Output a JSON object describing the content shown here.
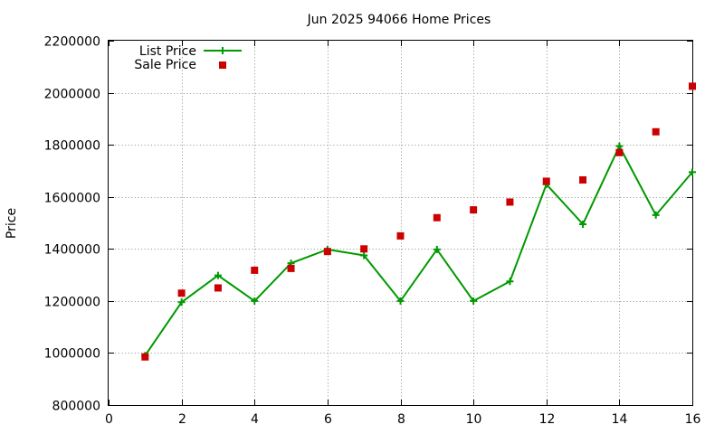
{
  "chart_data": {
    "type": "line",
    "title": "Jun 2025 94066 Home Prices",
    "xlabel": "",
    "ylabel": "Price",
    "xlim": [
      0,
      16
    ],
    "ylim": [
      800000,
      2200000
    ],
    "xticks": [
      0,
      2,
      4,
      6,
      8,
      10,
      12,
      14,
      16
    ],
    "yticks": [
      800000,
      1000000,
      1200000,
      1400000,
      1600000,
      1800000,
      2000000,
      2200000
    ],
    "grid": true,
    "legend_position": "top-left",
    "series": [
      {
        "name": "List Price",
        "style": "line+cross",
        "color": "#009900",
        "x": [
          1,
          2,
          3,
          4,
          5,
          6,
          7,
          8,
          9,
          10,
          11,
          12,
          13,
          14,
          15,
          16
        ],
        "y": [
          990000,
          1195000,
          1298000,
          1200000,
          1345000,
          1398000,
          1375000,
          1200000,
          1398000,
          1200000,
          1275000,
          1648000,
          1495000,
          1795000,
          1530000,
          1695000
        ]
      },
      {
        "name": "Sale Price",
        "style": "square-points",
        "color": "#cc0000",
        "x": [
          1,
          2,
          3,
          4,
          5,
          6,
          7,
          8,
          9,
          10,
          11,
          12,
          13,
          14,
          15,
          16
        ],
        "y": [
          985000,
          1230000,
          1250000,
          1318000,
          1325000,
          1390000,
          1400000,
          1450000,
          1520000,
          1550000,
          1580000,
          1660000,
          1665000,
          1770000,
          1850000,
          2025000
        ]
      }
    ]
  }
}
